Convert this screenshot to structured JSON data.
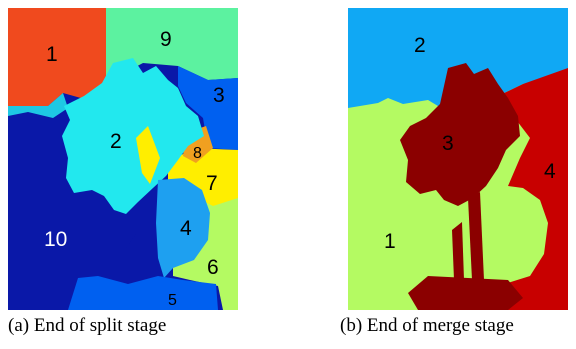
{
  "split": {
    "caption": "(a) End of split stage",
    "region_labels": [
      "1",
      "9",
      "3",
      "2",
      "8",
      "7",
      "10",
      "4",
      "6",
      "5"
    ]
  },
  "merge": {
    "caption": "(b) End of merge stage",
    "region_labels": [
      "2",
      "3",
      "4",
      "1"
    ]
  },
  "colors": {
    "orange": "#f04a1e",
    "mint": "#5cf2a0",
    "cyan": "#22e8ee",
    "blue_mid": "#0060f0",
    "navy": "#0a18a8",
    "yellow": "#ffee00",
    "amber": "#f0a020",
    "sky": "#1ea0f0",
    "lime": "#b4fa62",
    "azure": "#10a8f4",
    "dark_red": "#8b0000",
    "red": "#c80000"
  }
}
